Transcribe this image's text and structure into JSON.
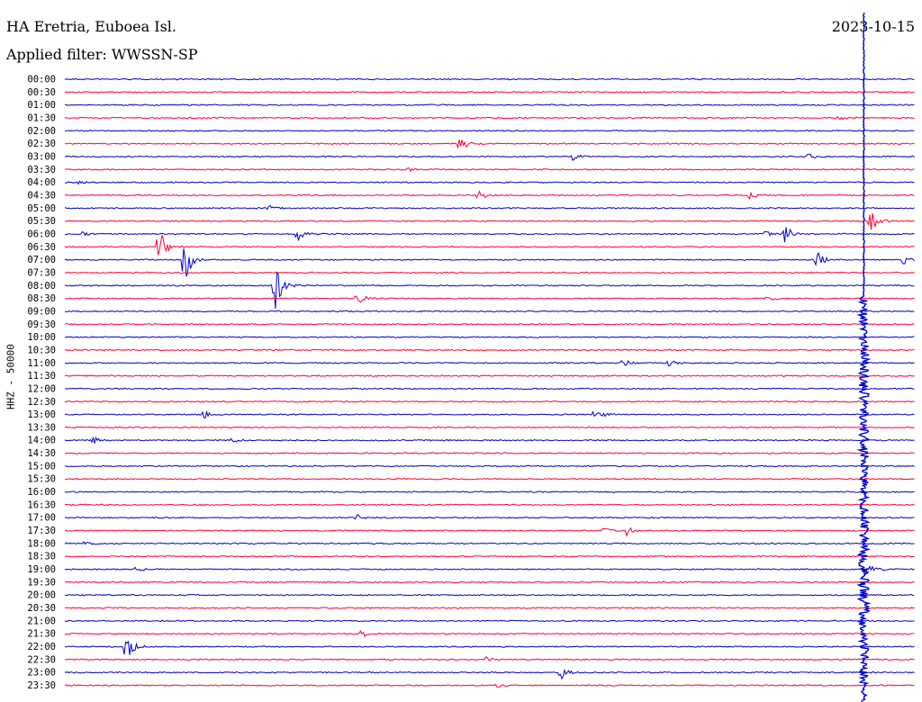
{
  "station": "HA Eretria, Euboea Isl.",
  "filter_label": "Applied filter: WWSSN-SP",
  "date": "2023-10-15",
  "channel_label": "HHZ - 50000",
  "colors": {
    "even": "#0000cc",
    "odd": "#ff0033"
  },
  "chart_data": {
    "type": "line",
    "title": "HA Eretria, Euboea Isl.",
    "subtitle": "Applied filter: WWSSN-SP",
    "ylabel": "HHZ - 50000",
    "xlabel": "",
    "traces": [
      "00:00",
      "00:30",
      "01:00",
      "01:30",
      "02:00",
      "02:30",
      "03:00",
      "03:30",
      "04:00",
      "04:30",
      "05:00",
      "05:30",
      "06:00",
      "06:30",
      "07:00",
      "07:30",
      "08:00",
      "08:30",
      "09:00",
      "09:30",
      "10:00",
      "10:30",
      "11:00",
      "11:30",
      "12:00",
      "12:30",
      "13:00",
      "13:30",
      "14:00",
      "14:30",
      "15:00",
      "15:30",
      "16:00",
      "16:30",
      "17:00",
      "17:30",
      "18:00",
      "18:30",
      "19:00",
      "19:30",
      "20:00",
      "20:30",
      "21:00",
      "21:30",
      "22:00",
      "22:30",
      "23:00",
      "23:30"
    ],
    "events": [
      {
        "trace": 3,
        "minute": 27.3,
        "amp": 3
      },
      {
        "trace": 5,
        "minute": 13.9,
        "amp": 12
      },
      {
        "trace": 6,
        "minute": 17.9,
        "amp": 5
      },
      {
        "trace": 6,
        "minute": 26.2,
        "amp": 4
      },
      {
        "trace": 7,
        "minute": 12.1,
        "amp": 3
      },
      {
        "trace": 8,
        "minute": 0.3,
        "amp": 5
      },
      {
        "trace": 9,
        "minute": 14.6,
        "amp": 5
      },
      {
        "trace": 9,
        "minute": 24.1,
        "amp": 7
      },
      {
        "trace": 10,
        "minute": 7.2,
        "amp": 4
      },
      {
        "trace": 11,
        "minute": 28.4,
        "amp": 18
      },
      {
        "trace": 12,
        "minute": 0.6,
        "amp": 3
      },
      {
        "trace": 12,
        "minute": 8.2,
        "amp": 9
      },
      {
        "trace": 12,
        "minute": 24.6,
        "amp": 5
      },
      {
        "trace": 12,
        "minute": 25.4,
        "amp": 12
      },
      {
        "trace": 13,
        "minute": 3.3,
        "amp": 26
      },
      {
        "trace": 14,
        "minute": 4.2,
        "amp": 34
      },
      {
        "trace": 14,
        "minute": 26.5,
        "amp": 14
      },
      {
        "trace": 14,
        "minute": 29.6,
        "amp": 8
      },
      {
        "trace": 16,
        "minute": 7.4,
        "amp": 36
      },
      {
        "trace": 17,
        "minute": 10.3,
        "amp": 10
      },
      {
        "trace": 17,
        "minute": 24.8,
        "amp": 5
      },
      {
        "trace": 22,
        "minute": 19.7,
        "amp": 5
      },
      {
        "trace": 22,
        "minute": 21.3,
        "amp": 5
      },
      {
        "trace": 26,
        "minute": 4.9,
        "amp": 5
      },
      {
        "trace": 26,
        "minute": 18.7,
        "amp": 9
      },
      {
        "trace": 28,
        "minute": 1.0,
        "amp": 4
      },
      {
        "trace": 28,
        "minute": 5.9,
        "amp": 4
      },
      {
        "trace": 34,
        "minute": 10.3,
        "amp": 4
      },
      {
        "trace": 35,
        "minute": 19.0,
        "amp": 4
      },
      {
        "trace": 35,
        "minute": 19.8,
        "amp": 6
      },
      {
        "trace": 36,
        "minute": 0.7,
        "amp": 4
      },
      {
        "trace": 38,
        "minute": 2.5,
        "amp": 4
      },
      {
        "trace": 38,
        "minute": 28.2,
        "amp": 14
      },
      {
        "trace": 43,
        "minute": 10.4,
        "amp": 6
      },
      {
        "trace": 44,
        "minute": 2.1,
        "amp": 24
      },
      {
        "trace": 45,
        "minute": 14.8,
        "amp": 4
      },
      {
        "trace": 46,
        "minute": 17.5,
        "amp": 8
      },
      {
        "trace": 47,
        "minute": 15.2,
        "amp": 3
      }
    ],
    "main_event": {
      "time": "19:28",
      "trace": 38,
      "minute": 28.2
    }
  }
}
